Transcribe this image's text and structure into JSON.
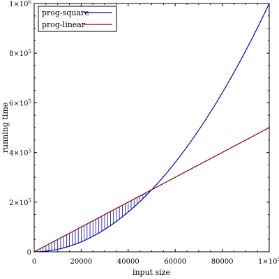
{
  "chart_data": {
    "type": "line",
    "xlabel": "input size",
    "ylabel": "running time",
    "xlim": [
      0,
      100000
    ],
    "ylim": [
      0,
      1000000
    ],
    "x_ticks": [
      {
        "value": 0,
        "label": "0"
      },
      {
        "value": 20000,
        "label": "20000"
      },
      {
        "value": 40000,
        "label": "40000"
      },
      {
        "value": 60000,
        "label": "60000"
      },
      {
        "value": 80000,
        "label": "80000"
      }
    ],
    "x_end_label": {
      "base": "1×10",
      "exp": "5"
    },
    "y_ticks": [
      {
        "value": 0,
        "base": "0",
        "exp": ""
      },
      {
        "value": 200000,
        "base": "2×10",
        "exp": "5"
      },
      {
        "value": 400000,
        "base": "4×10",
        "exp": "5"
      },
      {
        "value": 600000,
        "base": "6×10",
        "exp": "5"
      },
      {
        "value": 800000,
        "base": "8×10",
        "exp": "5"
      },
      {
        "value": 1000000,
        "base": "1×10",
        "exp": "6"
      }
    ],
    "series": [
      {
        "name": "prog-square",
        "color": "#0000cc",
        "formula": "y = x^2 / 10000",
        "x_range": [
          0,
          100000
        ],
        "points": [
          [
            0,
            0
          ],
          [
            25000,
            62500
          ],
          [
            50000,
            250000
          ],
          [
            75000,
            562500
          ],
          [
            100000,
            1000000
          ]
        ]
      },
      {
        "name": "prog-linear",
        "color": "#8b0000",
        "formula": "y = 5x",
        "x_range": [
          0,
          100000
        ],
        "points": [
          [
            0,
            0
          ],
          [
            50000,
            250000
          ],
          [
            100000,
            500000
          ]
        ]
      }
    ],
    "shaded_region": {
      "between": [
        "prog-linear",
        "prog-square"
      ],
      "x_range": [
        0,
        50000
      ],
      "hatch": "vertical",
      "color": "#0000cc"
    },
    "legend": {
      "position": "top-left"
    },
    "grid": false
  }
}
